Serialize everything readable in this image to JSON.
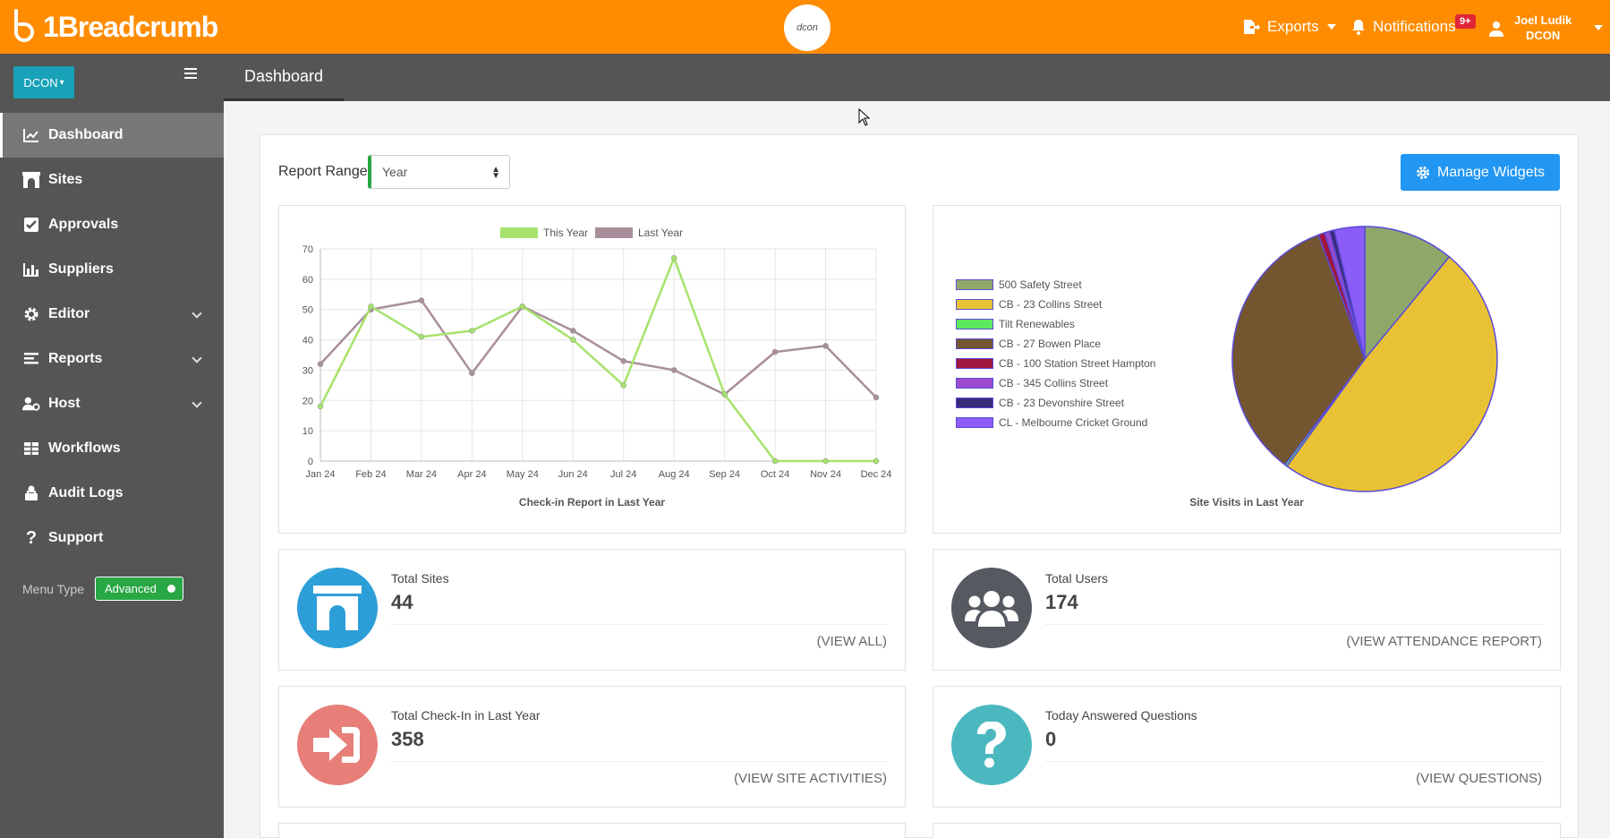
{
  "app": {
    "logo_text": "1Breadcrumb",
    "brand_mark": "dcon",
    "exports_label": "Exports",
    "notifications_label": "Notifications",
    "notifications_badge": "9+",
    "user_name": "Joel Ludik",
    "user_company": "DCON"
  },
  "sidebar": {
    "company": "DCON",
    "items": [
      {
        "label": "Dashboard",
        "icon": "chart-line-icon"
      },
      {
        "label": "Sites",
        "icon": "archway-icon"
      },
      {
        "label": "Approvals",
        "icon": "check-square-icon"
      },
      {
        "label": "Suppliers",
        "icon": "bar-chart-icon"
      },
      {
        "label": "Editor",
        "icon": "gear-icon"
      },
      {
        "label": "Reports",
        "icon": "list-icon"
      },
      {
        "label": "Host",
        "icon": "user-gear-icon"
      },
      {
        "label": "Workflows",
        "icon": "table-icon"
      },
      {
        "label": "Audit Logs",
        "icon": "user-lock-icon"
      },
      {
        "label": "Support",
        "icon": "question-icon"
      }
    ],
    "menu_type_label": "Menu Type",
    "menu_type_value": "Advanced"
  },
  "header": {
    "tab": "Dashboard"
  },
  "controls": {
    "report_range_label": "Report Range",
    "report_range_value": "Year",
    "manage_widgets": "Manage Widgets"
  },
  "line_chart": {
    "title": "Check-in Report in Last Year",
    "chart_data": {
      "type": "line",
      "x": [
        "Jan 24",
        "Feb 24",
        "Mar 24",
        "Apr 24",
        "May 24",
        "Jun 24",
        "Jul 24",
        "Aug 24",
        "Sep 24",
        "Oct 24",
        "Nov 24",
        "Dec 24"
      ],
      "ylim": [
        0,
        70
      ],
      "yticks": [
        0,
        10,
        20,
        30,
        40,
        50,
        60,
        70
      ],
      "series": [
        {
          "name": "This Year",
          "color": "#a6e36c",
          "values": [
            18,
            51,
            41,
            43,
            51,
            40,
            25,
            67,
            22,
            0,
            0,
            0
          ]
        },
        {
          "name": "Last Year",
          "color": "#a98f9c",
          "values": [
            32,
            50,
            53,
            29,
            51,
            43,
            33,
            30,
            22,
            36,
            38,
            21
          ]
        }
      ]
    }
  },
  "pie_chart": {
    "title": "Site Visits in Last Year",
    "chart_data": {
      "type": "pie",
      "labels": [
        "500 Safety Street",
        "CB - 23 Collins Street",
        "Tilt Renewables",
        "CB - 27 Bowen Place",
        "CB - 100 Station Street Hampton",
        "CB - 345 Collins Street",
        "CB - 23 Devonshire Street",
        "CL - Melbourne Cricket Ground"
      ],
      "values": [
        11,
        49,
        0.3,
        34,
        0.8,
        0.6,
        0.6,
        3.7
      ],
      "colors": [
        "#8fa86a",
        "#e8c234",
        "#5de85d",
        "#735630",
        "#a0163c",
        "#9c4bd0",
        "#3a2a7a",
        "#8b5cf6"
      ]
    }
  },
  "stats": [
    {
      "title": "Total Sites",
      "value": "44",
      "link": "(VIEW ALL)",
      "color": "#2d9fd8"
    },
    {
      "title": "Total Users",
      "value": "174",
      "link": "(VIEW ATTENDANCE REPORT)",
      "color": "#555a60"
    },
    {
      "title": "Total Check-In in Last Year",
      "value": "358",
      "link": "(VIEW SITE ACTIVITIES)",
      "color": "#e77f78"
    },
    {
      "title": "Today Answered Questions",
      "value": "0",
      "link": "(VIEW QUESTIONS)",
      "color": "#4bb8c0"
    }
  ]
}
